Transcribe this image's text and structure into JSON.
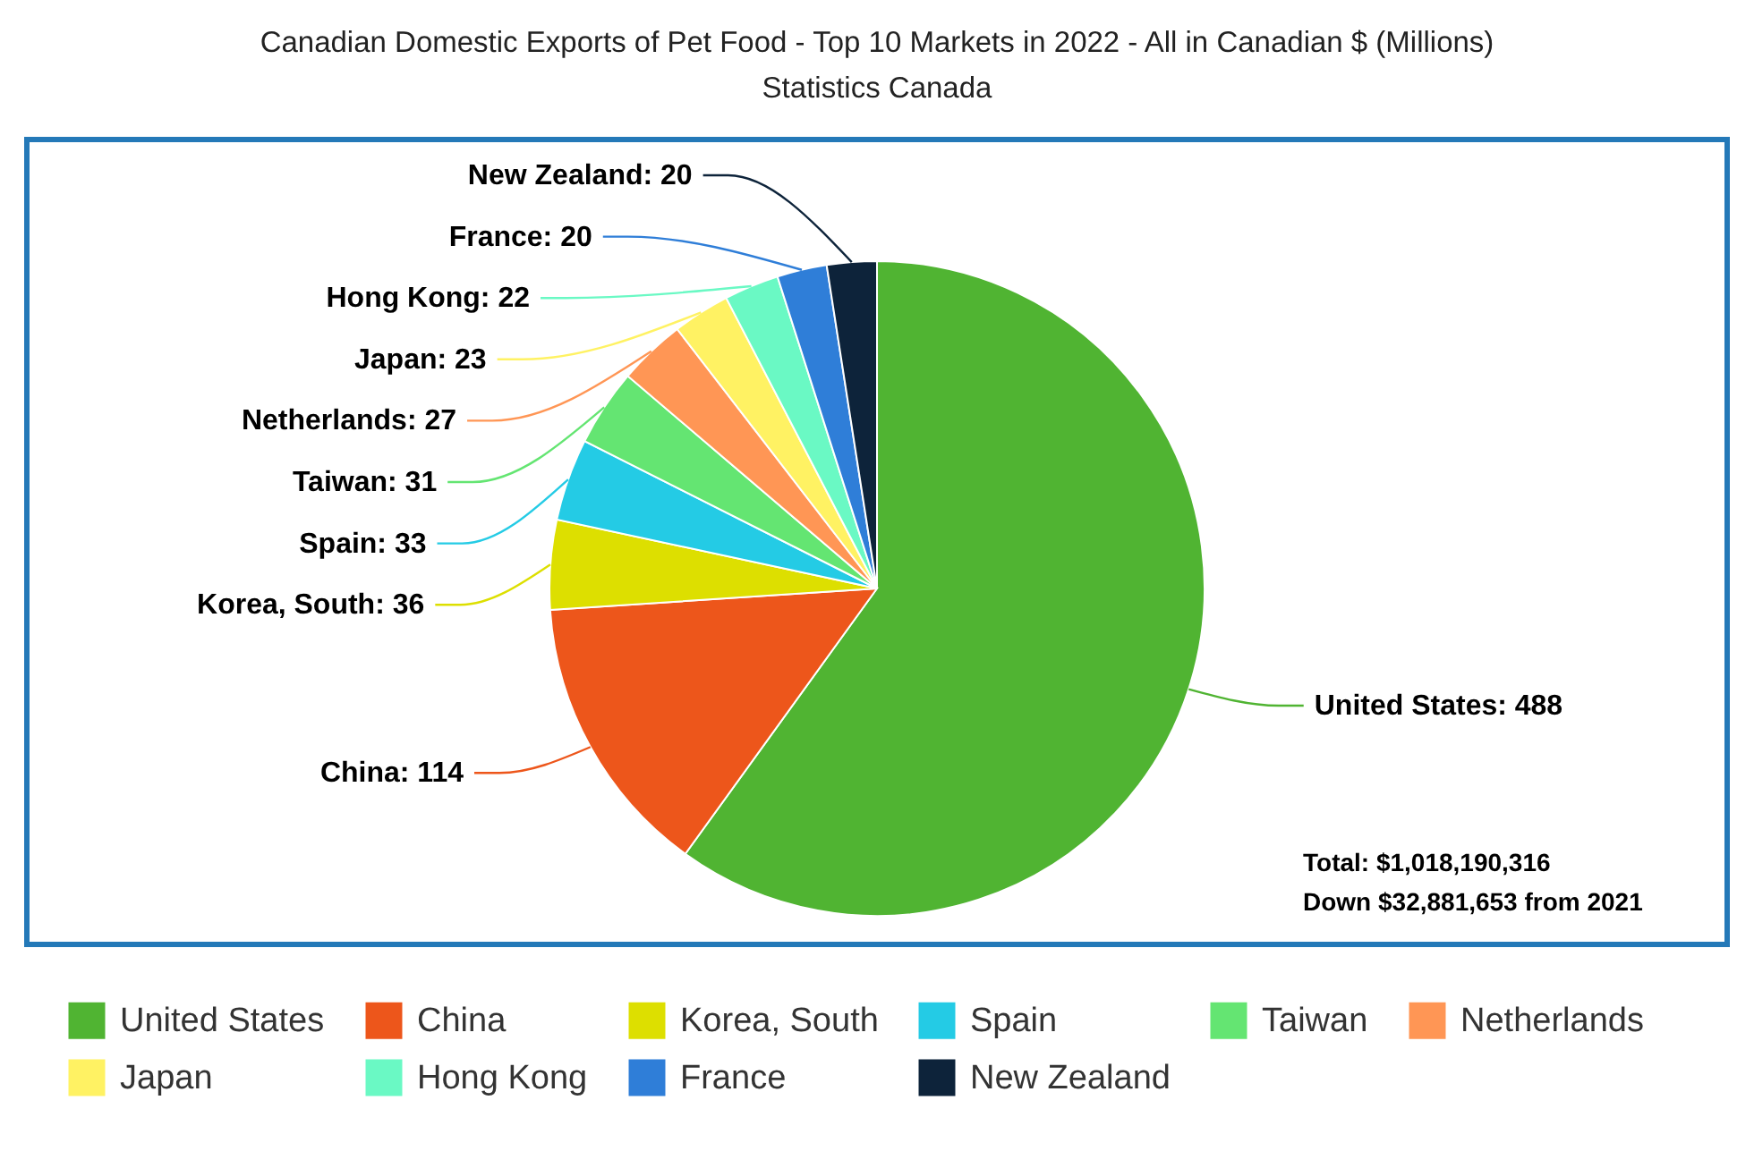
{
  "chart_data": {
    "type": "pie",
    "title": "Canadian Domestic Exports of Pet Food - Top 10 Markets in 2022 - All in Canadian $ (Millions)",
    "subtitle": "Statistics Canada",
    "categories": [
      "United States",
      "China",
      "Korea, South",
      "Spain",
      "Taiwan",
      "Netherlands",
      "Japan",
      "Hong Kong",
      "France",
      "New Zealand"
    ],
    "values": [
      488,
      114,
      36,
      33,
      31,
      27,
      23,
      22,
      20,
      20
    ],
    "value_labels": [
      "United States: 488",
      "China: 114",
      "Korea, South: 36",
      "Spain: 33",
      "Taiwan: 31",
      "Netherlands: 27",
      "Japan: 23",
      "Hong Kong: 22",
      "France: 20",
      "New Zealand: 20"
    ],
    "colors": [
      "#50b432",
      "#ed561b",
      "#dddf00",
      "#24cbe5",
      "#64e572",
      "#ff9655",
      "#fff263",
      "#6af9c4",
      "#2f7ed8",
      "#0d233a"
    ],
    "legend": "bottom",
    "annotations": [
      "Total:  $1,018,190,316",
      "Down $32,881,653 from 2021"
    ]
  }
}
